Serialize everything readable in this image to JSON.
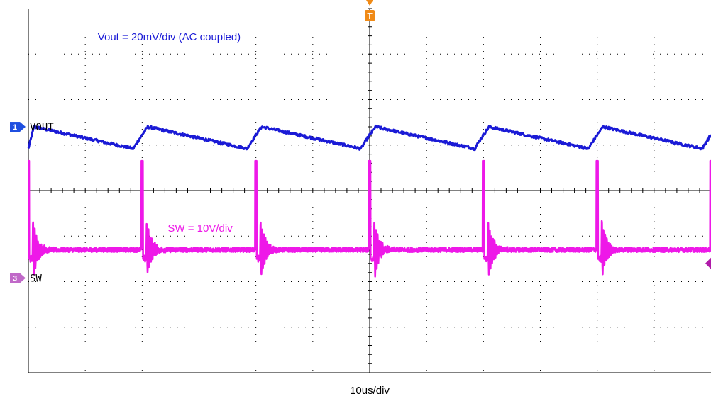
{
  "chart_data": {
    "type": "line",
    "grid": true,
    "x_divisions": 12,
    "y_divisions": 8,
    "xlabel": "10us/div",
    "trigger_marker": "T",
    "colors": {
      "vout": "#1a1ad6",
      "sw": "#ee18e8",
      "ch1_marker": "#1f4fe0",
      "ch3_marker": "#c069c8",
      "trigger": "#f08a16",
      "level_marker": "#b01aa9",
      "grid": "#000000"
    },
    "annotations": [
      {
        "id": "vout",
        "text": "Vout = 20mV/div (AC coupled)"
      },
      {
        "id": "sw",
        "text": "SW = 10V/div"
      }
    ],
    "series": [
      {
        "key": "vout",
        "channel_number": "1",
        "channel_label": "VOUT",
        "period_div": 2,
        "first_rise_div": 0.1,
        "ramp_rise_div": 0.25,
        "peak_div": 0.4,
        "min_div": -0.08
      },
      {
        "key": "sw",
        "channel_number": "3",
        "channel_label": "SW",
        "period_div": 2,
        "baseline_div": 0.95,
        "spike_top_div": 1.8,
        "dip_div": 0.2,
        "ring_amplitude_div": 0.7
      }
    ]
  }
}
